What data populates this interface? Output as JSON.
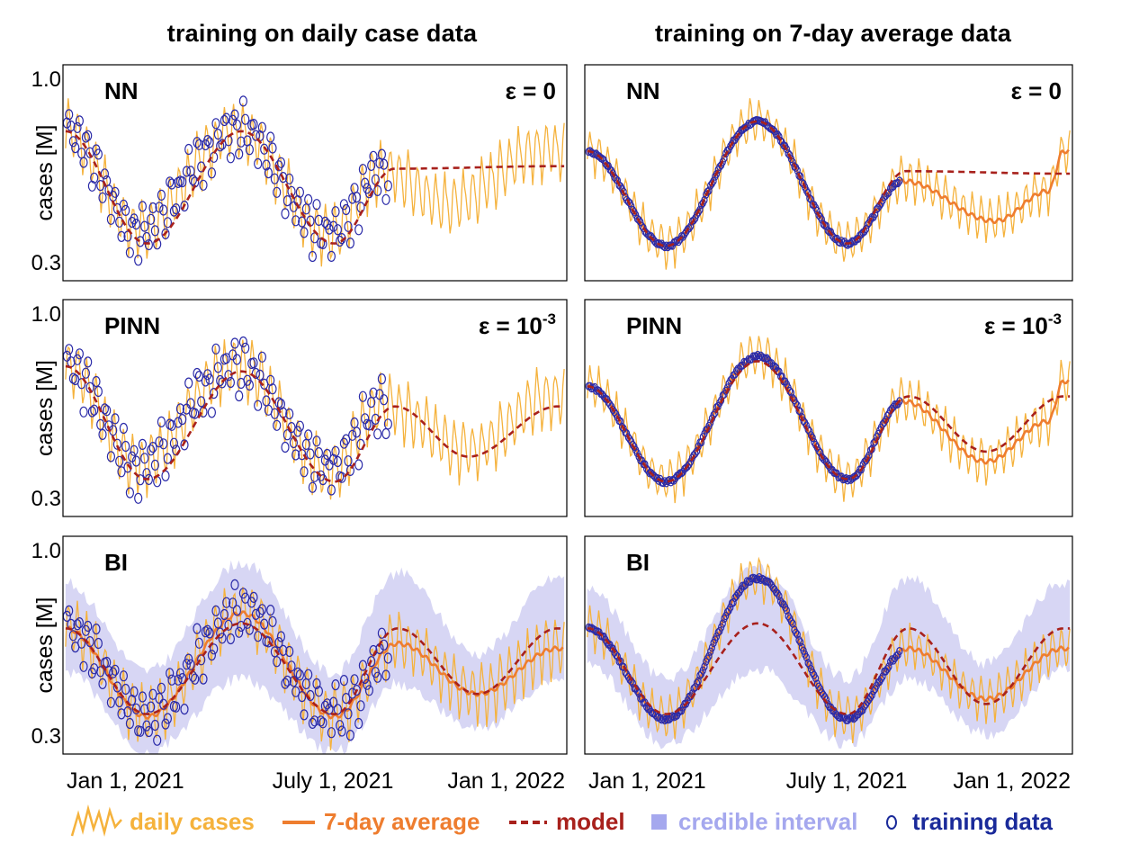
{
  "column_titles": [
    "training on daily case data",
    "training on 7-day average data"
  ],
  "colors": {
    "daily": "#f5b23c",
    "avg": "#ee7d2f",
    "model": "#a8211c",
    "ci": "#c9c8f0",
    "train": "#2a2aa8",
    "legend_ci": "#a5a8ee",
    "legend_train": "#1a2a9a"
  },
  "legend": {
    "daily": "daily cases",
    "avg": "7-day average",
    "model": "model",
    "ci": "credible interval",
    "train": "training data"
  },
  "chart_data": [
    {
      "type": "line",
      "row": "NN",
      "col": "daily",
      "method": "NN",
      "epsilon": "ε = 0",
      "ylabel": "cases [M]",
      "yticks": [
        "1.0",
        "0.3"
      ],
      "ylim": [
        0.3,
        1.0
      ],
      "xticks": [
        "Jan 1, 2021",
        "July 1, 2021",
        "Jan 1, 2022"
      ],
      "xlim": [
        "2020-12-20",
        "2022-01-08"
      ],
      "training_until": "2021-08-25",
      "series": [
        {
          "name": "daily cases",
          "x": [
            "2020-12-22",
            "2021-02-15",
            "2021-05-01",
            "2021-07-12",
            "2021-08-20",
            "2021-10-10",
            "2021-12-20"
          ],
          "y": [
            0.82,
            0.42,
            0.82,
            0.4,
            0.66,
            0.52,
            0.74
          ]
        },
        {
          "name": "model",
          "x": [
            "2020-12-22",
            "2021-02-22",
            "2021-05-05",
            "2021-07-15",
            "2021-08-30",
            "2022-01-01"
          ],
          "y": [
            0.82,
            0.37,
            0.82,
            0.37,
            0.67,
            0.68
          ]
        }
      ]
    },
    {
      "type": "line",
      "row": "NN",
      "col": "avg",
      "method": "NN",
      "epsilon": "ε = 0",
      "ylabel": "",
      "yticks": [],
      "ylim": [
        0.3,
        1.0
      ],
      "xticks": [
        "Jan 1, 2021",
        "July 1, 2021",
        "Jan 1, 2022"
      ],
      "xlim": [
        "2020-12-20",
        "2022-01-08"
      ],
      "training_until": "2021-08-25",
      "series": [
        {
          "name": "7-day average",
          "x": [
            "2020-12-22",
            "2021-02-22",
            "2021-05-05",
            "2021-07-15",
            "2021-08-28",
            "2021-11-08",
            "2021-12-20",
            "2022-01-01"
          ],
          "y": [
            0.74,
            0.36,
            0.86,
            0.37,
            0.62,
            0.46,
            0.58,
            0.74
          ]
        },
        {
          "name": "model",
          "x": [
            "2020-12-22",
            "2021-02-22",
            "2021-05-05",
            "2021-07-15",
            "2021-08-30",
            "2022-01-01"
          ],
          "y": [
            0.74,
            0.36,
            0.86,
            0.37,
            0.66,
            0.65
          ]
        }
      ]
    },
    {
      "type": "line",
      "row": "PINN",
      "col": "daily",
      "method": "PINN",
      "epsilon": "ε = 10",
      "epsilon_exp": "-3",
      "ylabel": "cases [M]",
      "yticks": [
        "1.0",
        "0.3"
      ],
      "ylim": [
        0.3,
        1.0
      ],
      "xticks": [
        "Jan 1, 2021",
        "July 1, 2021",
        "Jan 1, 2022"
      ],
      "xlim": [
        "2020-12-20",
        "2022-01-08"
      ],
      "training_until": "2021-08-25",
      "series": [
        {
          "name": "daily cases",
          "x": [
            "2020-12-22",
            "2021-02-15",
            "2021-05-01",
            "2021-07-12",
            "2021-08-20",
            "2021-10-25",
            "2021-12-28"
          ],
          "y": [
            0.82,
            0.42,
            0.82,
            0.4,
            0.66,
            0.48,
            0.7
          ]
        },
        {
          "name": "model",
          "x": [
            "2020-12-22",
            "2021-02-22",
            "2021-05-05",
            "2021-07-15",
            "2021-08-30",
            "2021-10-25",
            "2022-01-01"
          ],
          "y": [
            0.82,
            0.37,
            0.8,
            0.36,
            0.66,
            0.46,
            0.66
          ]
        }
      ]
    },
    {
      "type": "line",
      "row": "PINN",
      "col": "avg",
      "method": "PINN",
      "epsilon": "ε = 10",
      "epsilon_exp": "-3",
      "ylabel": "",
      "yticks": [],
      "ylim": [
        0.3,
        1.0
      ],
      "xticks": [
        "Jan 1, 2021",
        "July 1, 2021",
        "Jan 1, 2022"
      ],
      "xlim": [
        "2020-12-20",
        "2022-01-08"
      ],
      "training_until": "2021-08-25",
      "series": [
        {
          "name": "7-day average",
          "x": [
            "2020-12-22",
            "2021-02-22",
            "2021-05-05",
            "2021-07-15",
            "2021-08-28",
            "2021-11-01",
            "2021-12-20",
            "2022-01-01"
          ],
          "y": [
            0.74,
            0.36,
            0.86,
            0.37,
            0.68,
            0.44,
            0.6,
            0.76
          ]
        },
        {
          "name": "model",
          "x": [
            "2020-12-22",
            "2021-02-22",
            "2021-05-05",
            "2021-07-15",
            "2021-09-01",
            "2021-11-01",
            "2022-01-01"
          ],
          "y": [
            0.74,
            0.36,
            0.84,
            0.37,
            0.7,
            0.48,
            0.7
          ]
        }
      ]
    },
    {
      "type": "line",
      "row": "BI",
      "col": "daily",
      "method": "BI",
      "epsilon": "",
      "ylabel": "cases [M]",
      "yticks": [
        "1.0",
        "0.3"
      ],
      "ylim": [
        0.3,
        1.0
      ],
      "xticks": [
        "Jan 1, 2021",
        "July 1, 2021",
        "Jan 1, 2022"
      ],
      "xlim": [
        "2020-12-20",
        "2022-01-08"
      ],
      "training_until": "2021-08-25",
      "series": [
        {
          "name": "7-day average",
          "x": [
            "2020-12-22",
            "2021-02-22",
            "2021-05-05",
            "2021-07-15",
            "2021-09-01",
            "2021-11-01",
            "2022-01-01"
          ],
          "y": [
            0.72,
            0.37,
            0.78,
            0.37,
            0.66,
            0.46,
            0.64
          ]
        },
        {
          "name": "model",
          "x": [
            "2020-12-22",
            "2021-02-22",
            "2021-05-05",
            "2021-07-15",
            "2021-09-01",
            "2021-11-01",
            "2022-01-01"
          ],
          "y": [
            0.72,
            0.38,
            0.74,
            0.38,
            0.72,
            0.46,
            0.72
          ]
        },
        {
          "name": "credible interval",
          "x": [
            "2020-12-22",
            "2021-02-22",
            "2021-05-05",
            "2021-07-15",
            "2021-09-01",
            "2021-11-01",
            "2022-01-01"
          ],
          "lower": [
            0.55,
            0.23,
            0.52,
            0.23,
            0.5,
            0.32,
            0.52
          ],
          "upper": [
            0.9,
            0.55,
            0.98,
            0.54,
            0.94,
            0.62,
            0.92
          ]
        }
      ]
    },
    {
      "type": "line",
      "row": "BI",
      "col": "avg",
      "method": "BI",
      "epsilon": "",
      "ylabel": "",
      "yticks": [],
      "ylim": [
        0.3,
        1.0
      ],
      "xticks": [
        "Jan 1, 2021",
        "July 1, 2021",
        "Jan 1, 2022"
      ],
      "xlim": [
        "2020-12-20",
        "2022-01-08"
      ],
      "training_until": "2021-08-25",
      "series": [
        {
          "name": "7-day average",
          "x": [
            "2020-12-22",
            "2021-02-22",
            "2021-05-05",
            "2021-07-15",
            "2021-09-01",
            "2021-11-01",
            "2022-01-01"
          ],
          "y": [
            0.72,
            0.36,
            0.92,
            0.36,
            0.64,
            0.44,
            0.64
          ]
        },
        {
          "name": "model",
          "x": [
            "2020-12-22",
            "2021-02-22",
            "2021-05-05",
            "2021-07-15",
            "2021-09-01",
            "2021-11-01",
            "2022-01-01"
          ],
          "y": [
            0.72,
            0.38,
            0.74,
            0.38,
            0.72,
            0.42,
            0.72
          ]
        },
        {
          "name": "credible interval",
          "x": [
            "2020-12-22",
            "2021-02-22",
            "2021-05-05",
            "2021-07-15",
            "2021-09-01",
            "2021-11-01",
            "2022-01-01"
          ],
          "lower": [
            0.58,
            0.26,
            0.56,
            0.26,
            0.52,
            0.3,
            0.56
          ],
          "upper": [
            0.88,
            0.52,
            0.96,
            0.52,
            0.92,
            0.58,
            0.9
          ]
        }
      ]
    }
  ]
}
